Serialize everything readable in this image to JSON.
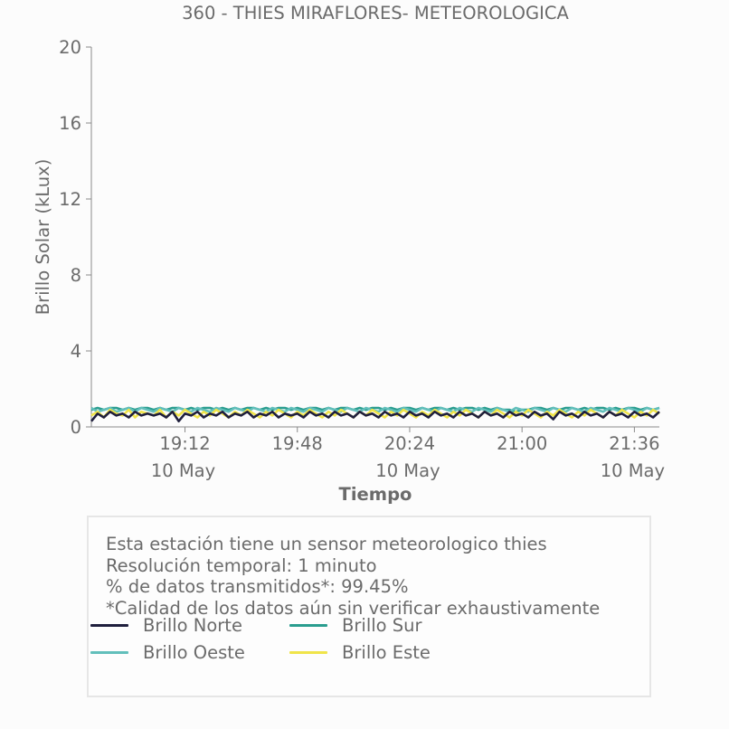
{
  "chart_data": {
    "type": "line",
    "title": "360 - THIES MIRAFLORES- METEOROLOGICA",
    "xlabel": "Tiempo",
    "ylabel": "Brillo Solar (kLux)",
    "ylim": [
      0,
      20
    ],
    "yticks": [
      "0",
      "4",
      "8",
      "12",
      "16",
      "20"
    ],
    "xlim": [
      "2024-05-10 18:42",
      "2024-05-10 21:44"
    ],
    "xticks": [
      {
        "t": "2024-05-10 19:12",
        "label": "19:12",
        "sublabel": "10 May"
      },
      {
        "t": "2024-05-10 19:48",
        "label": "19:48",
        "sublabel": ""
      },
      {
        "t": "2024-05-10 20:24",
        "label": "20:24",
        "sublabel": "10 May"
      },
      {
        "t": "2024-05-10 21:00",
        "label": "21:00",
        "sublabel": ""
      },
      {
        "t": "2024-05-10 21:36",
        "label": "21:36",
        "sublabel": "10 May"
      }
    ],
    "grid": false,
    "x_start": "2024-05-10 18:42",
    "x_step_minutes": 2,
    "series": [
      {
        "name": "Brillo Norte",
        "color": "#1f1f3d",
        "values": [
          0.3,
          0.7,
          0.5,
          0.8,
          0.6,
          0.7,
          0.5,
          0.8,
          0.6,
          0.7,
          0.6,
          0.7,
          0.5,
          0.8,
          0.3,
          0.7,
          0.6,
          0.8,
          0.5,
          0.7,
          0.6,
          0.8,
          0.5,
          0.7,
          0.6,
          0.8,
          0.5,
          0.7,
          0.6,
          0.8,
          0.5,
          0.7,
          0.6,
          0.7,
          0.5,
          0.8,
          0.6,
          0.7,
          0.5,
          0.8,
          0.6,
          0.7,
          0.5,
          0.8,
          0.6,
          0.7,
          0.5,
          0.8,
          0.6,
          0.7,
          0.5,
          0.8,
          0.6,
          0.7,
          0.5,
          0.8,
          0.6,
          0.7,
          0.5,
          0.8,
          0.6,
          0.7,
          0.5,
          0.8,
          0.6,
          0.7,
          0.5,
          0.8,
          0.6,
          0.7,
          0.5,
          0.8,
          0.6,
          0.7,
          0.4,
          0.8,
          0.6,
          0.7,
          0.5,
          0.8,
          0.6,
          0.7,
          0.5,
          0.8,
          0.6,
          0.7,
          0.5,
          0.8,
          0.6,
          0.7,
          0.5,
          0.8
        ]
      },
      {
        "name": "Brillo Sur",
        "color": "#2a9d8f",
        "values": [
          0.9,
          1.0,
          0.9,
          1.0,
          1.0,
          0.9,
          1.0,
          0.9,
          1.0,
          1.0,
          0.9,
          1.0,
          0.9,
          1.0,
          1.0,
          0.9,
          1.0,
          0.9,
          1.0,
          1.0,
          0.9,
          1.0,
          0.9,
          1.0,
          0.9,
          1.0,
          1.0,
          0.9,
          1.0,
          0.9,
          1.0,
          1.0,
          0.9,
          1.0,
          0.9,
          1.0,
          1.0,
          0.9,
          1.0,
          0.9,
          1.0,
          1.0,
          0.9,
          1.0,
          0.9,
          1.0,
          1.0,
          0.9,
          1.0,
          0.9,
          1.0,
          1.0,
          0.9,
          1.0,
          0.9,
          1.0,
          1.0,
          0.9,
          1.0,
          0.9,
          1.0,
          1.0,
          0.9,
          1.0,
          0.9,
          1.0,
          0.9,
          0.9,
          0.8,
          0.9,
          0.9,
          1.0,
          1.0,
          0.9,
          1.0,
          0.9,
          1.0,
          1.0,
          0.9,
          1.0,
          0.9,
          1.0,
          1.0,
          0.9,
          1.0,
          0.9,
          1.0,
          1.0,
          0.9,
          1.0,
          0.9,
          1.0
        ]
      },
      {
        "name": "Brillo Oeste",
        "color": "#62bfbb",
        "values": [
          1.0,
          0.8,
          0.9,
          1.0,
          0.8,
          0.9,
          1.0,
          0.8,
          1.0,
          0.9,
          0.8,
          1.0,
          0.9,
          0.8,
          1.0,
          0.9,
          0.8,
          1.0,
          0.9,
          0.8,
          1.0,
          0.9,
          0.8,
          1.0,
          0.9,
          0.8,
          1.0,
          0.9,
          0.8,
          1.0,
          0.9,
          0.8,
          1.0,
          0.9,
          0.8,
          1.0,
          0.9,
          0.8,
          1.0,
          0.9,
          0.8,
          1.0,
          0.9,
          0.8,
          1.0,
          0.9,
          0.8,
          1.0,
          0.9,
          0.8,
          1.0,
          0.9,
          0.8,
          1.0,
          0.9,
          0.8,
          1.0,
          0.9,
          0.8,
          1.0,
          0.9,
          0.8,
          1.0,
          0.9,
          0.8,
          1.0,
          0.9,
          0.8,
          1.0,
          0.9,
          0.8,
          1.0,
          0.9,
          0.8,
          1.0,
          0.9,
          0.8,
          1.0,
          0.9,
          0.8,
          1.0,
          0.9,
          0.8,
          1.0,
          0.9,
          0.8,
          1.0,
          0.9,
          0.8,
          1.0,
          0.9,
          1.0
        ]
      },
      {
        "name": "Brillo Este",
        "color": "#f0e44a",
        "values": [
          0.6,
          0.8,
          0.5,
          0.9,
          0.7,
          0.6,
          0.9,
          0.5,
          0.8,
          0.7,
          0.6,
          0.9,
          0.5,
          0.8,
          0.6,
          0.9,
          0.7,
          0.5,
          0.8,
          0.6,
          0.9,
          0.7,
          0.5,
          0.8,
          0.6,
          0.9,
          0.7,
          0.5,
          0.8,
          0.6,
          0.9,
          0.7,
          0.5,
          0.8,
          0.6,
          0.9,
          0.7,
          0.5,
          0.8,
          0.6,
          0.9,
          0.7,
          0.5,
          0.8,
          0.6,
          0.9,
          0.7,
          0.5,
          0.8,
          0.6,
          0.9,
          0.7,
          0.5,
          0.8,
          0.6,
          0.9,
          0.7,
          0.5,
          0.8,
          0.6,
          0.9,
          0.7,
          0.5,
          0.8,
          0.6,
          0.9,
          0.7,
          0.5,
          0.8,
          0.6,
          0.9,
          0.7,
          0.5,
          0.8,
          0.6,
          0.9,
          0.7,
          0.5,
          0.8,
          0.6,
          0.9,
          0.7,
          0.5,
          0.8,
          0.6,
          0.9,
          0.7,
          0.5,
          0.8,
          0.6,
          0.9,
          0.7
        ]
      }
    ],
    "legend_position": "below"
  },
  "info": {
    "lines": [
      "Esta estación tiene un sensor meteorologico thies",
      "Resolución temporal: 1 minuto",
      "% de datos transmitidos*: 99.45%",
      "*Calidad de los datos aún sin verificar exhaustivamente"
    ]
  },
  "colors": {
    "text": "#6b6b6b",
    "axis": "#8a8a8a",
    "border": "#e6e6e6"
  }
}
